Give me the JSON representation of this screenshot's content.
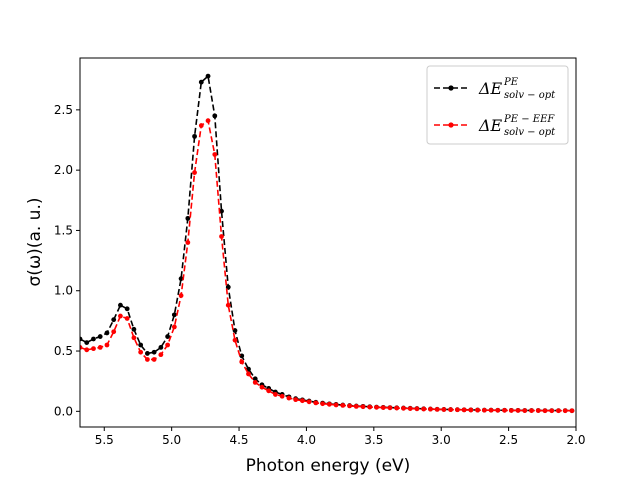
{
  "chart_data": {
    "type": "line",
    "title": "",
    "xlabel": "Photon energy (eV)",
    "ylabel": "σ(ω)(a. u.)",
    "xlim": [
      5.68,
      2.0
    ],
    "ylim": [
      -0.13,
      2.93
    ],
    "x_axis_inverted": true,
    "x_ticks": [
      5.5,
      5.0,
      4.5,
      4.0,
      3.5,
      3.0,
      2.5,
      2.0
    ],
    "x_tick_labels": [
      "5.5",
      "5.0",
      "4.5",
      "4.0",
      "3.5",
      "3.0",
      "2.5",
      "2.0"
    ],
    "y_ticks": [
      0.0,
      0.5,
      1.0,
      1.5,
      2.0,
      2.5
    ],
    "y_tick_labels": [
      "0.0",
      "0.5",
      "1.0",
      "1.5",
      "2.0",
      "2.5"
    ],
    "grid": false,
    "legend_position": "top-right",
    "series": [
      {
        "name": "ΔE",
        "legend_base": "ΔE",
        "legend_sup": "PE",
        "legend_sub": "solv − opt",
        "color": "#000000",
        "line_style": "dashed",
        "marker": "circle",
        "x": [
          5.68,
          5.63,
          5.58,
          5.53,
          5.48,
          5.43,
          5.38,
          5.33,
          5.28,
          5.23,
          5.18,
          5.13,
          5.08,
          5.03,
          4.98,
          4.93,
          4.88,
          4.83,
          4.78,
          4.73,
          4.68,
          4.63,
          4.58,
          4.53,
          4.48,
          4.43,
          4.38,
          4.33,
          4.28,
          4.23,
          4.18,
          4.13,
          4.08,
          4.03,
          3.98,
          3.93,
          3.88,
          3.83,
          3.78,
          3.73,
          3.68,
          3.63,
          3.58,
          3.53,
          3.48,
          3.43,
          3.38,
          3.33,
          3.28,
          3.23,
          3.18,
          3.13,
          3.08,
          3.03,
          2.98,
          2.93,
          2.88,
          2.83,
          2.78,
          2.73,
          2.68,
          2.63,
          2.58,
          2.53,
          2.48,
          2.43,
          2.38,
          2.33,
          2.28,
          2.23,
          2.18,
          2.13,
          2.08,
          2.03
        ],
        "y": [
          0.6,
          0.57,
          0.6,
          0.62,
          0.65,
          0.76,
          0.88,
          0.85,
          0.68,
          0.55,
          0.48,
          0.49,
          0.53,
          0.62,
          0.8,
          1.1,
          1.6,
          2.28,
          2.73,
          2.78,
          2.45,
          1.66,
          1.03,
          0.67,
          0.46,
          0.35,
          0.27,
          0.22,
          0.19,
          0.16,
          0.14,
          0.12,
          0.105,
          0.095,
          0.085,
          0.075,
          0.068,
          0.062,
          0.057,
          0.052,
          0.048,
          0.044,
          0.041,
          0.038,
          0.035,
          0.033,
          0.031,
          0.029,
          0.027,
          0.025,
          0.023,
          0.021,
          0.019,
          0.017,
          0.016,
          0.015,
          0.014,
          0.013,
          0.012,
          0.011,
          0.01,
          0.01,
          0.009,
          0.009,
          0.008,
          0.008,
          0.007,
          0.007,
          0.007,
          0.006,
          0.006,
          0.006,
          0.006,
          0.005
        ]
      },
      {
        "name": "ΔE",
        "legend_base": "ΔE",
        "legend_sup": "PE − EEF",
        "legend_sub": "solv − opt",
        "color": "#ff0000",
        "line_style": "dashed",
        "marker": "circle",
        "x": [
          5.68,
          5.63,
          5.58,
          5.53,
          5.48,
          5.43,
          5.38,
          5.33,
          5.28,
          5.23,
          5.18,
          5.13,
          5.08,
          5.03,
          4.98,
          4.93,
          4.88,
          4.83,
          4.78,
          4.73,
          4.68,
          4.63,
          4.58,
          4.53,
          4.48,
          4.43,
          4.38,
          4.33,
          4.28,
          4.23,
          4.18,
          4.13,
          4.08,
          4.03,
          3.98,
          3.93,
          3.88,
          3.83,
          3.78,
          3.73,
          3.68,
          3.63,
          3.58,
          3.53,
          3.48,
          3.43,
          3.38,
          3.33,
          3.28,
          3.23,
          3.18,
          3.13,
          3.08,
          3.03,
          2.98,
          2.93,
          2.88,
          2.83,
          2.78,
          2.73,
          2.68,
          2.63,
          2.58,
          2.53,
          2.48,
          2.43,
          2.38,
          2.33,
          2.28,
          2.23,
          2.18,
          2.13,
          2.08,
          2.03
        ],
        "y": [
          0.53,
          0.51,
          0.52,
          0.53,
          0.55,
          0.66,
          0.79,
          0.77,
          0.61,
          0.49,
          0.43,
          0.43,
          0.47,
          0.55,
          0.7,
          0.96,
          1.4,
          1.98,
          2.37,
          2.41,
          2.13,
          1.45,
          0.88,
          0.59,
          0.41,
          0.31,
          0.24,
          0.2,
          0.17,
          0.14,
          0.125,
          0.11,
          0.097,
          0.088,
          0.079,
          0.07,
          0.063,
          0.058,
          0.053,
          0.049,
          0.045,
          0.041,
          0.038,
          0.035,
          0.033,
          0.031,
          0.029,
          0.027,
          0.025,
          0.023,
          0.021,
          0.019,
          0.018,
          0.016,
          0.015,
          0.014,
          0.013,
          0.012,
          0.011,
          0.01,
          0.009,
          0.009,
          0.008,
          0.008,
          0.007,
          0.007,
          0.006,
          0.006,
          0.006,
          0.005,
          0.005,
          0.005,
          0.005,
          0.005
        ]
      }
    ]
  }
}
